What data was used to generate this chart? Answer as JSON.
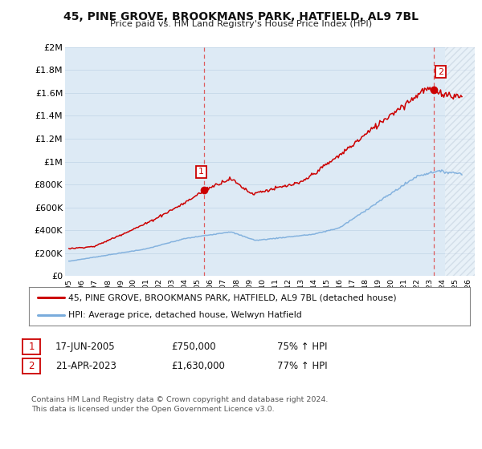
{
  "title": "45, PINE GROVE, BROOKMANS PARK, HATFIELD, AL9 7BL",
  "subtitle": "Price paid vs. HM Land Registry's House Price Index (HPI)",
  "ylabel_ticks": [
    "£0",
    "£200K",
    "£400K",
    "£600K",
    "£800K",
    "£1M",
    "£1.2M",
    "£1.4M",
    "£1.6M",
    "£1.8M",
    "£2M"
  ],
  "ytick_values": [
    0,
    200000,
    400000,
    600000,
    800000,
    1000000,
    1200000,
    1400000,
    1600000,
    1800000,
    2000000
  ],
  "ylim": [
    0,
    2000000
  ],
  "xlim_start": 1994.7,
  "xlim_end": 2026.5,
  "sale1_x": 2005.46,
  "sale1_y": 750000,
  "sale2_x": 2023.31,
  "sale2_y": 1630000,
  "legend_line1": "45, PINE GROVE, BROOKMANS PARK, HATFIELD, AL9 7BL (detached house)",
  "legend_line2": "HPI: Average price, detached house, Welwyn Hatfield",
  "table_row1": [
    "1",
    "17-JUN-2005",
    "£750,000",
    "75% ↑ HPI"
  ],
  "table_row2": [
    "2",
    "21-APR-2023",
    "£1,630,000",
    "77% ↑ HPI"
  ],
  "footer": "Contains HM Land Registry data © Crown copyright and database right 2024.\nThis data is licensed under the Open Government Licence v3.0.",
  "red_color": "#cc0000",
  "blue_color": "#7aacdc",
  "grid_color": "#c8daea",
  "bg_color": "#ffffff",
  "plot_bg": "#ddeaf5"
}
